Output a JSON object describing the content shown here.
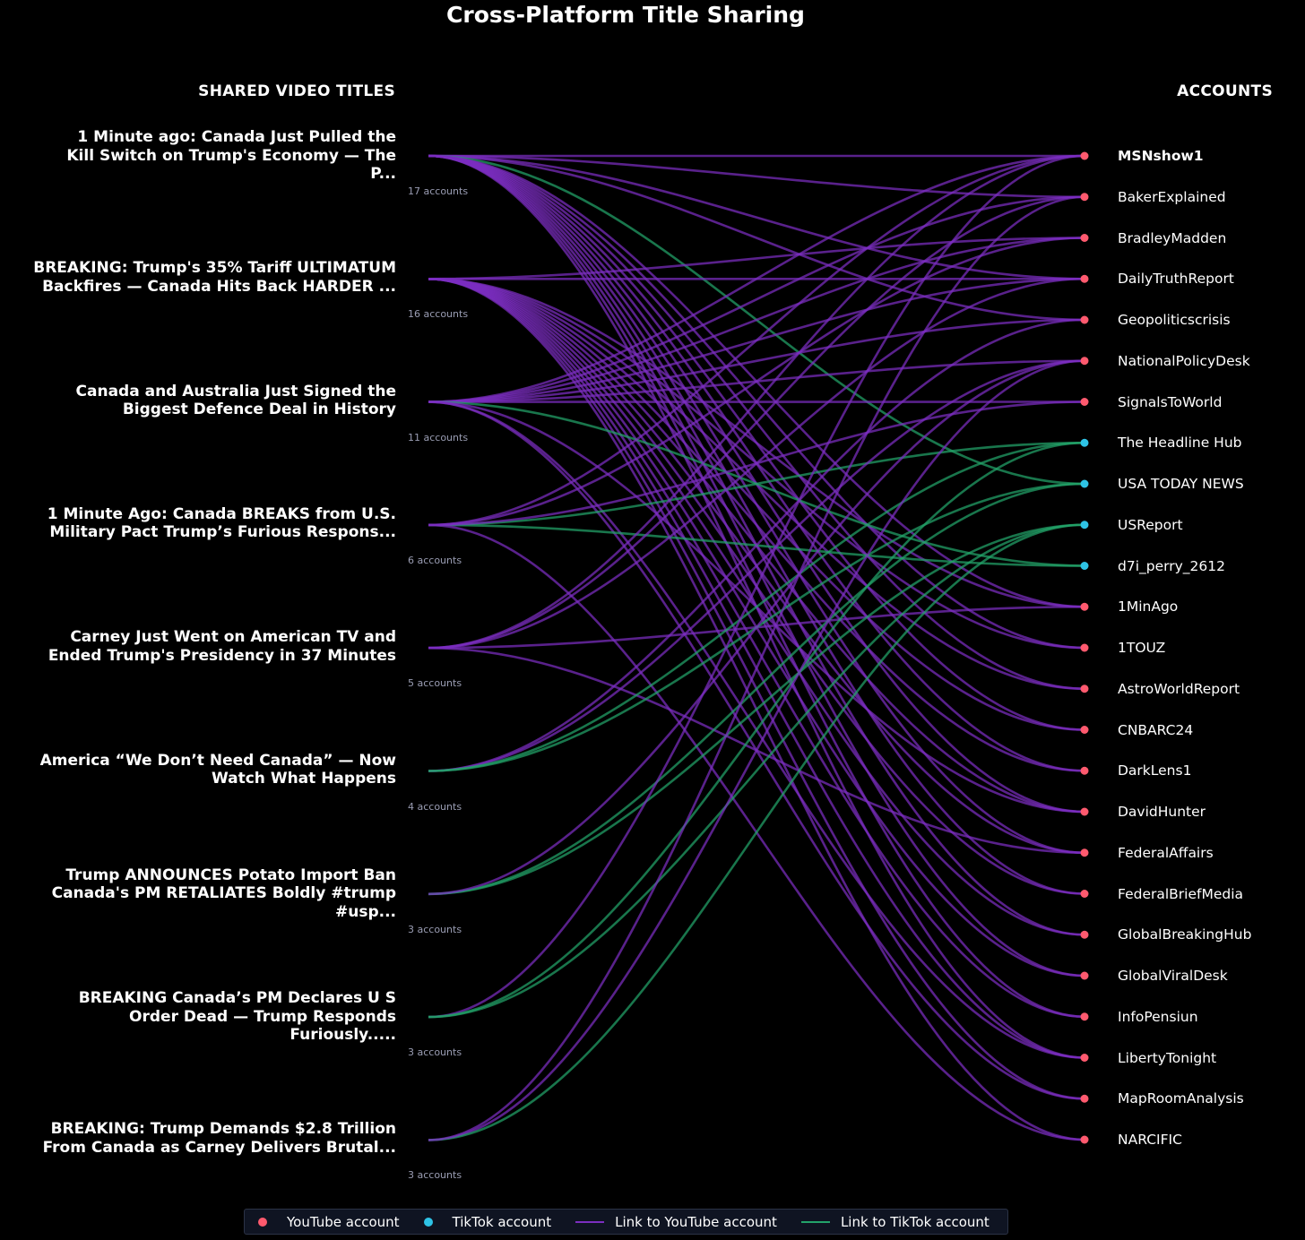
{
  "title": "Cross-Platform Title Sharing",
  "left_header": "SHARED VIDEO TITLES",
  "right_header": "ACCOUNTS",
  "colors": {
    "youtube_node": "#ff5a6e",
    "tiktok_node": "#2ec3e6",
    "youtube_link": "#7b2ec0",
    "tiktok_link": "#23a36a"
  },
  "titles": [
    {
      "lines": [
        "1 Minute ago: Canada Just Pulled the",
        "Kill Switch on Trump's Economy — The",
        "P..."
      ],
      "count": "17 accounts"
    },
    {
      "lines": [
        "BREAKING: Trump's 35% Tariff ULTIMATUM",
        "Backfires — Canada Hits Back HARDER ..."
      ],
      "count": "16 accounts"
    },
    {
      "lines": [
        "Canada and Australia Just Signed the",
        "Biggest Defence Deal in History"
      ],
      "count": "11 accounts"
    },
    {
      "lines": [
        "1 Minute Ago: Canada BREAKS from U.S.",
        "Military Pact Trump’s Furious Respons..."
      ],
      "count": "6 accounts"
    },
    {
      "lines": [
        "Carney Just Went on American TV and",
        "Ended Trump's Presidency in 37 Minutes"
      ],
      "count": "5 accounts"
    },
    {
      "lines": [
        "America “We Don’t Need Canada” — Now",
        "Watch What Happens"
      ],
      "count": "4 accounts"
    },
    {
      "lines": [
        "Trump ANNOUNCES Potato Import Ban",
        "Canada's PM RETALIATES Boldly #trump",
        "#usp..."
      ],
      "count": "3 accounts"
    },
    {
      "lines": [
        "BREAKING  Canada’s PM Declares U S",
        "Order Dead — Trump Responds",
        "Furiously....."
      ],
      "count": "3 accounts"
    },
    {
      "lines": [
        "BREAKING: Trump Demands $2.8 Trillion",
        "From Canada as Carney Delivers Brutal..."
      ],
      "count": "3 accounts"
    }
  ],
  "accounts": [
    {
      "name": "MSNshow1",
      "platform": "youtube",
      "bold": true
    },
    {
      "name": "BakerExplained",
      "platform": "youtube"
    },
    {
      "name": "BradleyMadden",
      "platform": "youtube"
    },
    {
      "name": "DailyTruthReport",
      "platform": "youtube"
    },
    {
      "name": "Geopoliticscrisis",
      "platform": "youtube"
    },
    {
      "name": "NationalPolicyDesk",
      "platform": "youtube"
    },
    {
      "name": "SignalsToWorld",
      "platform": "youtube"
    },
    {
      "name": "The Headline Hub",
      "platform": "tiktok"
    },
    {
      "name": "USA TODAY NEWS",
      "platform": "tiktok"
    },
    {
      "name": "USReport",
      "platform": "tiktok"
    },
    {
      "name": "d7i_perry_2612",
      "platform": "tiktok"
    },
    {
      "name": "1MinAgo",
      "platform": "youtube"
    },
    {
      "name": "1TOUZ",
      "platform": "youtube"
    },
    {
      "name": "AstroWorldReport",
      "platform": "youtube"
    },
    {
      "name": "CNBARC24",
      "platform": "youtube"
    },
    {
      "name": "DarkLens1",
      "platform": "youtube"
    },
    {
      "name": "DavidHunter",
      "platform": "youtube"
    },
    {
      "name": "FederalAffairs",
      "platform": "youtube"
    },
    {
      "name": "FederalBriefMedia",
      "platform": "youtube"
    },
    {
      "name": "GlobalBreakingHub",
      "platform": "youtube"
    },
    {
      "name": "GlobalViralDesk",
      "platform": "youtube"
    },
    {
      "name": "InfoPensiun",
      "platform": "youtube"
    },
    {
      "name": "LibertyTonight",
      "platform": "youtube"
    },
    {
      "name": "MapRoomAnalysis",
      "platform": "youtube"
    },
    {
      "name": "NARCIFIC",
      "platform": "youtube"
    }
  ],
  "links": [
    [
      0,
      0
    ],
    [
      0,
      1
    ],
    [
      0,
      3
    ],
    [
      0,
      4
    ],
    [
      0,
      8
    ],
    [
      0,
      11
    ],
    [
      0,
      12
    ],
    [
      0,
      13
    ],
    [
      0,
      14
    ],
    [
      0,
      15
    ],
    [
      0,
      16
    ],
    [
      0,
      17
    ],
    [
      0,
      18
    ],
    [
      0,
      19
    ],
    [
      0,
      20
    ],
    [
      0,
      21
    ],
    [
      0,
      22
    ],
    [
      1,
      2
    ],
    [
      1,
      3
    ],
    [
      1,
      11
    ],
    [
      1,
      12
    ],
    [
      1,
      13
    ],
    [
      1,
      14
    ],
    [
      1,
      15
    ],
    [
      1,
      16
    ],
    [
      1,
      17
    ],
    [
      1,
      18
    ],
    [
      1,
      19
    ],
    [
      1,
      20
    ],
    [
      1,
      21
    ],
    [
      1,
      22
    ],
    [
      1,
      23
    ],
    [
      1,
      24
    ],
    [
      2,
      0
    ],
    [
      2,
      1
    ],
    [
      2,
      2
    ],
    [
      2,
      3
    ],
    [
      2,
      4
    ],
    [
      2,
      5
    ],
    [
      2,
      6
    ],
    [
      2,
      10
    ],
    [
      2,
      16
    ],
    [
      2,
      22
    ],
    [
      2,
      23
    ],
    [
      3,
      7
    ],
    [
      3,
      10
    ],
    [
      3,
      2
    ],
    [
      3,
      0
    ],
    [
      3,
      6
    ],
    [
      3,
      24
    ],
    [
      4,
      1
    ],
    [
      4,
      0
    ],
    [
      4,
      3
    ],
    [
      4,
      11
    ],
    [
      4,
      17
    ],
    [
      5,
      5
    ],
    [
      5,
      4
    ],
    [
      5,
      8
    ],
    [
      5,
      7
    ],
    [
      6,
      8
    ],
    [
      6,
      9
    ],
    [
      6,
      5
    ],
    [
      7,
      0
    ],
    [
      7,
      7
    ],
    [
      7,
      9
    ],
    [
      8,
      5
    ],
    [
      8,
      9
    ],
    [
      8,
      1
    ]
  ],
  "legend": [
    {
      "label": "YouTube account",
      "kind": "dot",
      "color": "#ff5a6e"
    },
    {
      "label": "TikTok account",
      "kind": "dot",
      "color": "#2ec3e6"
    },
    {
      "label": "Link to YouTube account",
      "kind": "line",
      "color": "#7b2ec0"
    },
    {
      "label": "Link to TikTok account",
      "kind": "line",
      "color": "#23a36a"
    }
  ]
}
